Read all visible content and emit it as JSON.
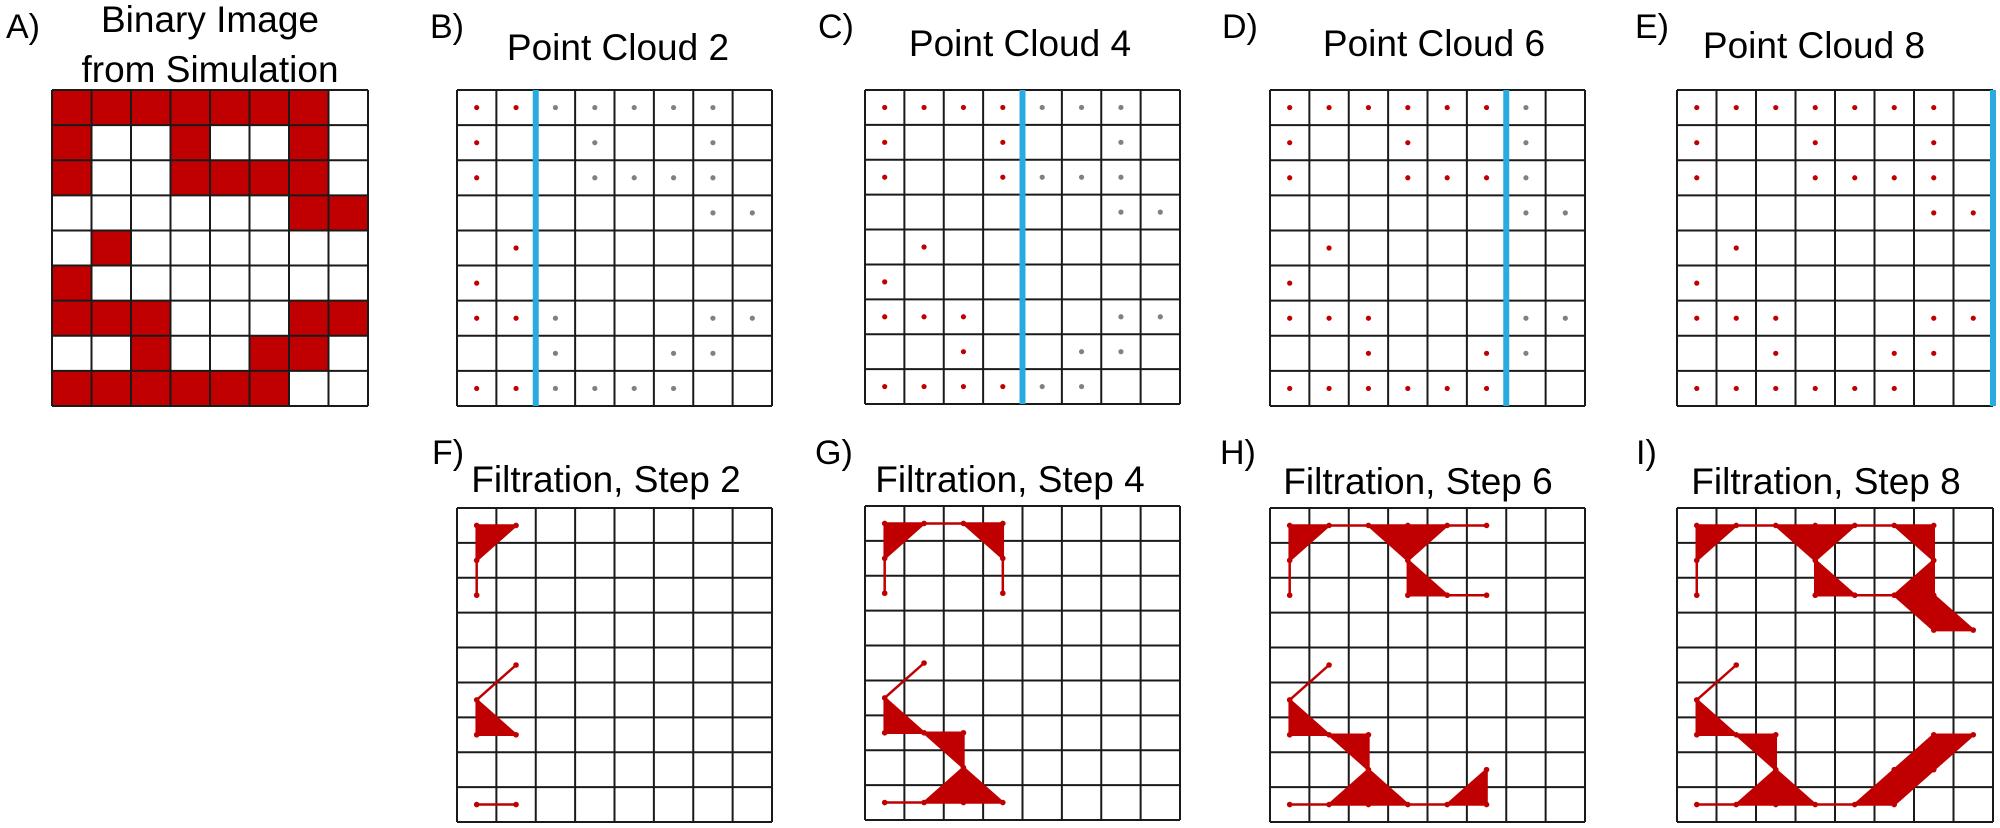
{
  "colors": {
    "filled": "#c00000",
    "empty": "#ffffff",
    "grid_line": "#1a1a1a",
    "point_active": "#c00000",
    "point_inactive": "#808080",
    "sweep_line": "#29abe2",
    "complex": "#c00000"
  },
  "grid": {
    "rows": 9,
    "cols": 8
  },
  "binary_image": [
    [
      1,
      1,
      1,
      1,
      1,
      1,
      1,
      0
    ],
    [
      1,
      0,
      0,
      1,
      0,
      0,
      1,
      0
    ],
    [
      1,
      0,
      0,
      1,
      1,
      1,
      1,
      0
    ],
    [
      0,
      0,
      0,
      0,
      0,
      0,
      1,
      1
    ],
    [
      0,
      1,
      0,
      0,
      0,
      0,
      0,
      0
    ],
    [
      1,
      0,
      0,
      0,
      0,
      0,
      0,
      0
    ],
    [
      1,
      1,
      1,
      0,
      0,
      0,
      1,
      1
    ],
    [
      0,
      0,
      1,
      0,
      0,
      1,
      1,
      0
    ],
    [
      1,
      1,
      1,
      1,
      1,
      1,
      0,
      0
    ]
  ],
  "panels": {
    "A": {
      "letter": "A)",
      "title": [
        "Binary Image",
        "from Simulation"
      ]
    },
    "B": {
      "letter": "B)",
      "title": "Point Cloud 2",
      "step": 2
    },
    "C": {
      "letter": "C)",
      "title": "Point Cloud 4",
      "step": 4
    },
    "D": {
      "letter": "D)",
      "title": "Point Cloud 6",
      "step": 6
    },
    "E": {
      "letter": "E)",
      "title": "Point Cloud 8",
      "step": 8
    },
    "F": {
      "letter": "F)",
      "title": "Filtration, Step 2",
      "step": 2
    },
    "G": {
      "letter": "G)",
      "title": "Filtration, Step 4",
      "step": 4
    },
    "H": {
      "letter": "H)",
      "title": "Filtration, Step 6",
      "step": 6
    },
    "I": {
      "letter": "I)",
      "title": "Filtration, Step 8",
      "step": 8
    }
  }
}
